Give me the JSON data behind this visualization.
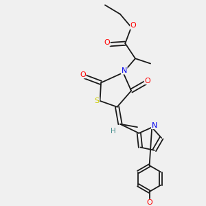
{
  "bg_color": "#f0f0f0",
  "atom_colors": {
    "C": "#1a1a1a",
    "N": "#0000ee",
    "O": "#ff0000",
    "S": "#cccc00",
    "H": "#4a9090"
  },
  "bond_color": "#1a1a1a"
}
